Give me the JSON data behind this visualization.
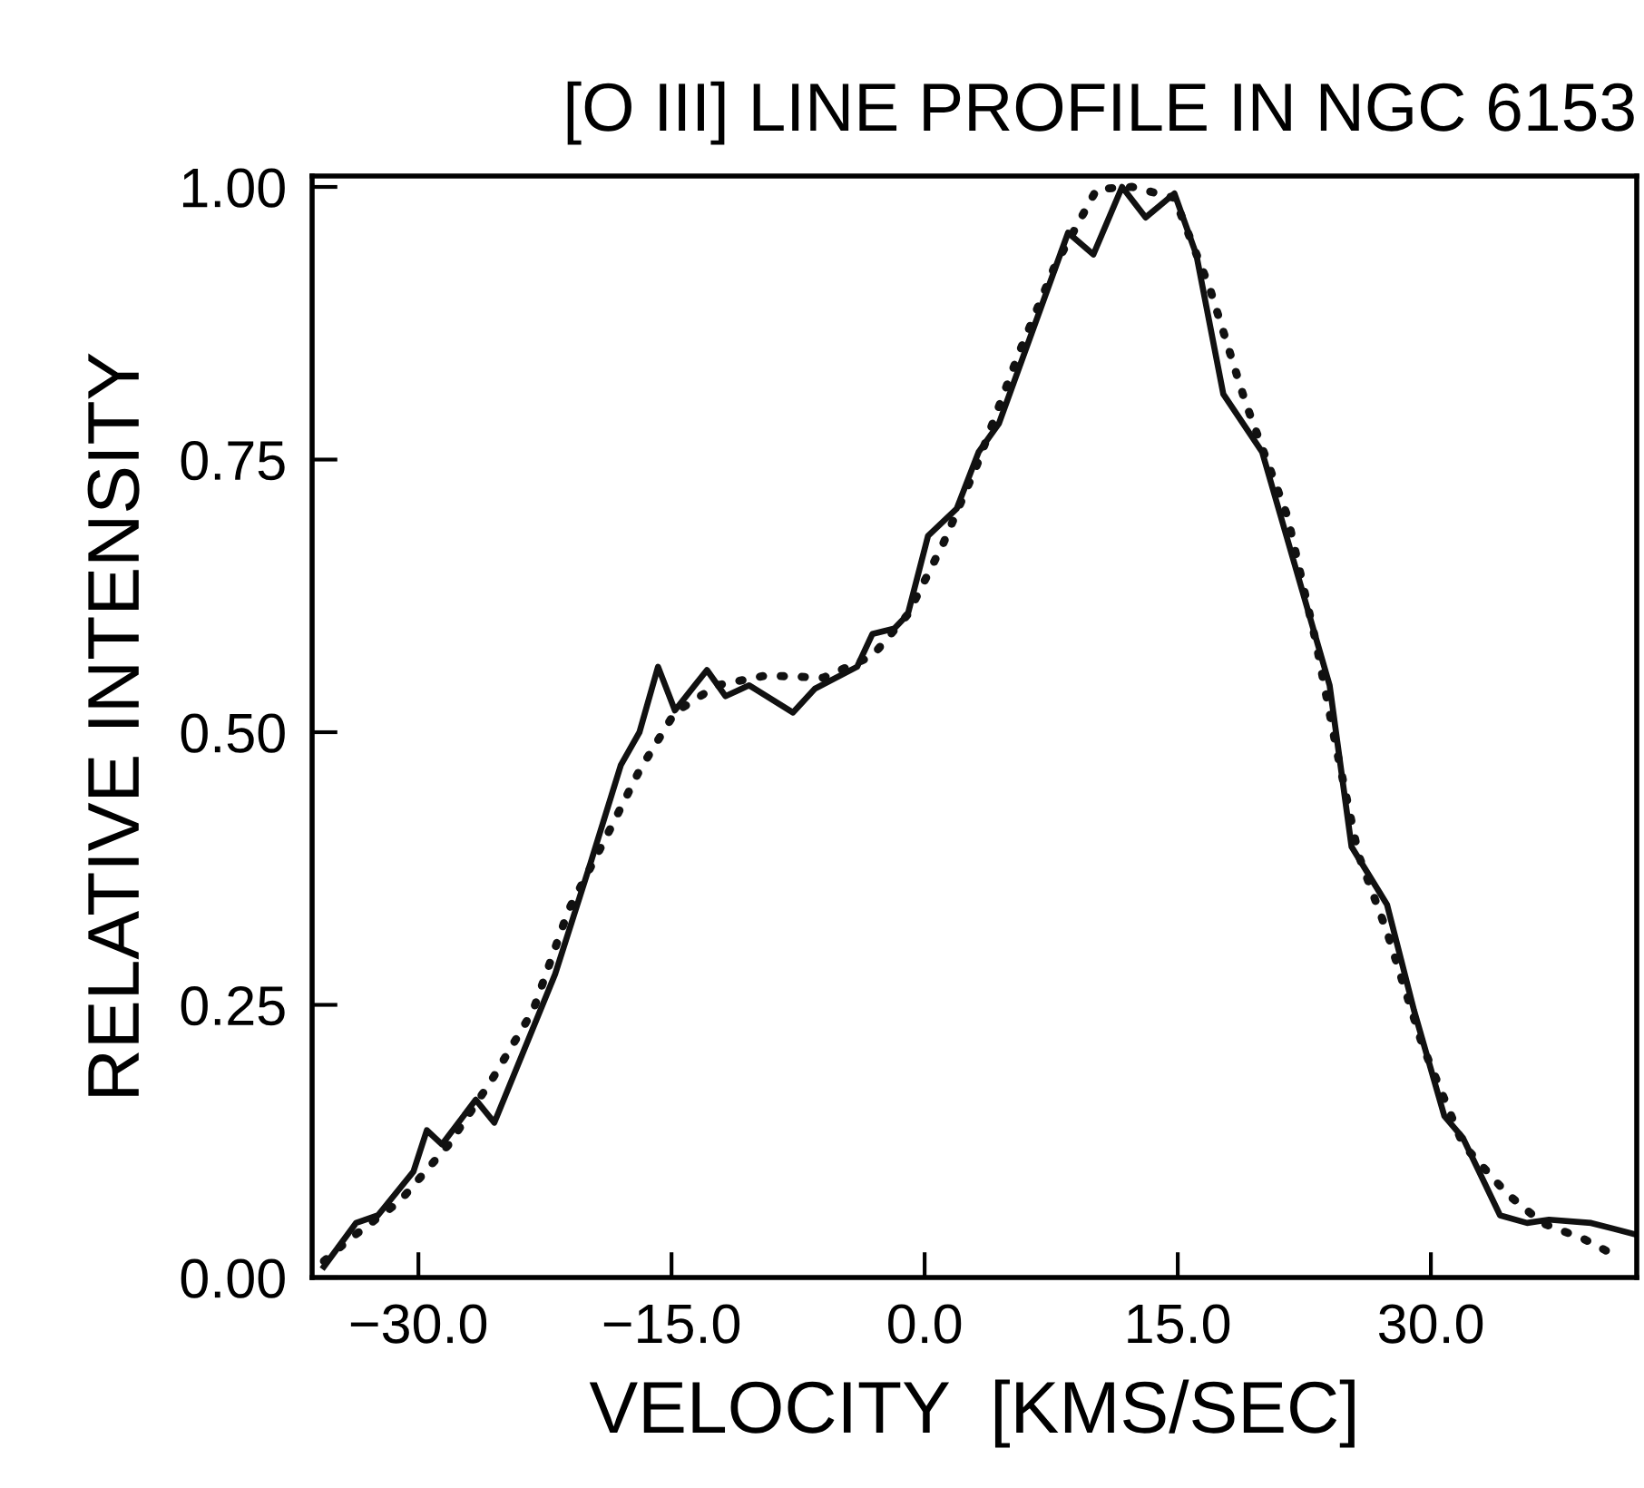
{
  "chart_data": {
    "type": "line",
    "title": "[O III] LINE PROFILE IN NGC 6153",
    "xlabel": "VELOCITY  [KMS/SEC]",
    "ylabel": "RELATIVE INTENSITY",
    "xlim": [
      -36.3,
      42.2
    ],
    "ylim": [
      0,
      1.01
    ],
    "xticks": [
      {
        "value": -30,
        "label": "−30.0"
      },
      {
        "value": -15,
        "label": "−15.0"
      },
      {
        "value": 0,
        "label": "0.0"
      },
      {
        "value": 15,
        "label": "15.0"
      },
      {
        "value": 30,
        "label": "30.0"
      }
    ],
    "yticks": [
      {
        "value": 0,
        "label": "0.00"
      },
      {
        "value": 0.25,
        "label": "0.25"
      },
      {
        "value": 0.5,
        "label": "0.50"
      },
      {
        "value": 0.75,
        "label": "0.75"
      },
      {
        "value": 1.0,
        "label": "1.00"
      }
    ],
    "grid": false,
    "series": [
      {
        "color": "#111111",
        "line_style": "solid",
        "x": [
          -35.6,
          -33.7,
          -32.4,
          -30.3,
          -29.5,
          -28.6,
          -26.6,
          -25.5,
          -21.9,
          -19.8,
          -18.0,
          -16.9,
          -15.8,
          -14.8,
          -12.9,
          -11.8,
          -10.4,
          -7.8,
          -6.5,
          -4.0,
          -3.1,
          -1.8,
          -1.0,
          0.2,
          1.9,
          3.2,
          4.4,
          8.5,
          10.0,
          11.7,
          13.1,
          14.8,
          16.1,
          17.7,
          20.0,
          24.0,
          25.3,
          27.4,
          29.0,
          30.8,
          31.9,
          34.1,
          35.7,
          37.0,
          39.5,
          42.0
        ],
        "values": [
          0.01,
          0.05,
          0.057,
          0.097,
          0.135,
          0.122,
          0.163,
          0.142,
          0.278,
          0.38,
          0.47,
          0.5,
          0.56,
          0.52,
          0.557,
          0.533,
          0.543,
          0.518,
          0.54,
          0.56,
          0.59,
          0.595,
          0.608,
          0.68,
          0.705,
          0.757,
          0.783,
          0.958,
          0.938,
          1.0,
          0.972,
          0.994,
          0.938,
          0.81,
          0.757,
          0.543,
          0.395,
          0.342,
          0.245,
          0.148,
          0.128,
          0.057,
          0.05,
          0.053,
          0.05,
          0.04
        ]
      },
      {
        "color": "#111111",
        "line_style": "dotted",
        "x": [
          -35.6,
          -34.1,
          -31.1,
          -28.2,
          -25.7,
          -23.2,
          -21.1,
          -19.0,
          -16.9,
          -14.8,
          -12.3,
          -9.4,
          -6.0,
          -3.1,
          -1.0,
          1.1,
          3.1,
          5.6,
          7.7,
          10.2,
          12.3,
          14.8,
          16.9,
          19.0,
          21.5,
          23.2,
          24.4,
          25.7,
          27.4,
          29.5,
          31.9,
          34.5,
          36.6,
          39.1,
          41.2
        ],
        "values": [
          0.015,
          0.035,
          0.07,
          0.122,
          0.18,
          0.245,
          0.337,
          0.4,
          0.465,
          0.518,
          0.543,
          0.552,
          0.55,
          0.57,
          0.608,
          0.673,
          0.745,
          0.848,
          0.927,
          0.998,
          1.0,
          0.99,
          0.907,
          0.803,
          0.698,
          0.582,
          0.485,
          0.388,
          0.317,
          0.213,
          0.122,
          0.077,
          0.05,
          0.035,
          0.018
        ]
      }
    ]
  }
}
